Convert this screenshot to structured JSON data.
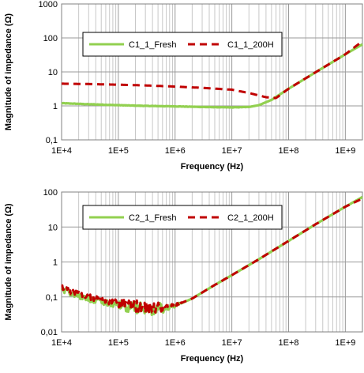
{
  "chart_data": [
    {
      "type": "line",
      "xlabel": "Frequency (Hz)",
      "ylabel": "Magnitude of impedance (Ω)",
      "x_scale": "log",
      "y_scale": "log",
      "xlim": [
        10000,
        2000000000
      ],
      "ylim": [
        0.1,
        1000
      ],
      "x_ticks": [
        10000,
        100000,
        1000000,
        10000000,
        100000000,
        1000000000
      ],
      "x_tick_labels": [
        "1E+4",
        "1E+5",
        "1E+6",
        "1E+7",
        "1E+8",
        "1E+9"
      ],
      "y_ticks": [
        0.1,
        1,
        10,
        100,
        1000
      ],
      "y_tick_labels": [
        "0,1",
        "1",
        "10",
        "100",
        "1000"
      ],
      "grid": true,
      "legend_position": "upper-center",
      "series": [
        {
          "name": "C1_1_Fresh",
          "color": "#92d050",
          "style": "solid",
          "x": [
            10000,
            30000,
            100000,
            300000,
            1000000,
            3000000,
            10000000,
            20000000,
            30000000,
            50000000,
            100000000,
            300000000,
            1000000000,
            2000000000
          ],
          "y": [
            1.2,
            1.12,
            1.05,
            1.0,
            0.97,
            0.93,
            0.9,
            0.93,
            1.05,
            1.5,
            3.2,
            9.8,
            33,
            65
          ]
        },
        {
          "name": "C1_1_200H",
          "color": "#c00000",
          "style": "dashed",
          "x": [
            10000,
            30000,
            100000,
            300000,
            1000000,
            3000000,
            10000000,
            20000000,
            40000000,
            60000000,
            100000000,
            300000000,
            1000000000,
            2000000000
          ],
          "y": [
            4.5,
            4.4,
            4.2,
            4.0,
            3.7,
            3.4,
            3.0,
            2.4,
            1.8,
            1.7,
            3.2,
            9.8,
            33,
            80
          ]
        }
      ]
    },
    {
      "type": "line",
      "xlabel": "Frequency (Hz)",
      "ylabel": "Magnitude of impedance (Ω)",
      "x_scale": "log",
      "y_scale": "log",
      "xlim": [
        10000,
        2000000000
      ],
      "ylim": [
        0.01,
        100
      ],
      "x_ticks": [
        10000,
        100000,
        1000000,
        10000000,
        100000000,
        1000000000
      ],
      "x_tick_labels": [
        "1E+4",
        "1E+5",
        "1E+6",
        "1E+7",
        "1E+8",
        "1E+9"
      ],
      "y_ticks": [
        0.01,
        0.1,
        1,
        10,
        100
      ],
      "y_tick_labels": [
        "0,01",
        "0,1",
        "1",
        "10",
        "100"
      ],
      "grid": true,
      "legend_position": "upper-center",
      "series": [
        {
          "name": "C2_1_Fresh",
          "color": "#92d050",
          "style": "solid",
          "x": [
            10000,
            15000,
            20000,
            30000,
            50000,
            70000,
            100000,
            150000,
            200000,
            300000,
            400000,
            500000,
            700000,
            1000000,
            2000000,
            5000000,
            10000000,
            30000000,
            100000000,
            300000000,
            1000000000,
            2000000000
          ],
          "y": [
            0.17,
            0.13,
            0.11,
            0.09,
            0.075,
            0.065,
            0.058,
            0.052,
            0.05,
            0.045,
            0.044,
            0.045,
            0.048,
            0.055,
            0.09,
            0.22,
            0.42,
            1.2,
            4.0,
            12,
            38,
            72
          ]
        },
        {
          "name": "C2_1_200H",
          "color": "#c00000",
          "style": "dashed",
          "x": [
            10000,
            15000,
            20000,
            30000,
            50000,
            70000,
            100000,
            150000,
            200000,
            300000,
            400000,
            500000,
            700000,
            1000000,
            2000000,
            5000000,
            10000000,
            30000000,
            100000000,
            300000000,
            1000000000,
            2000000000
          ],
          "y": [
            0.18,
            0.14,
            0.12,
            0.1,
            0.085,
            0.075,
            0.068,
            0.06,
            0.056,
            0.05,
            0.048,
            0.049,
            0.051,
            0.057,
            0.09,
            0.22,
            0.42,
            1.2,
            4.0,
            12,
            38,
            65
          ]
        }
      ]
    }
  ]
}
